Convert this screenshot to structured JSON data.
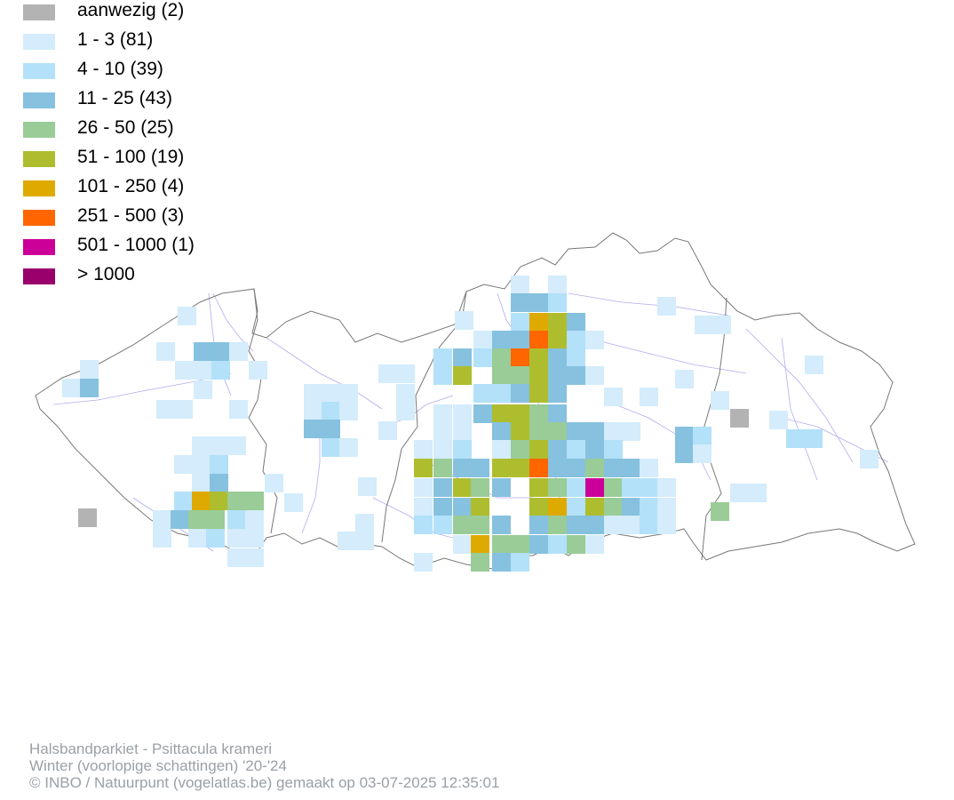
{
  "legend": {
    "items": [
      {
        "label": "aanwezig (2)",
        "color": "#b3b3b3"
      },
      {
        "label": "1 - 3 (81)",
        "color": "#d4ecfb"
      },
      {
        "label": "4 - 10 (39)",
        "color": "#b3e1f9"
      },
      {
        "label": "11 - 25 (43)",
        "color": "#86c1df"
      },
      {
        "label": "26 - 50 (25)",
        "color": "#99cc96"
      },
      {
        "label": "51 - 100 (19)",
        "color": "#aebd2e"
      },
      {
        "label": "101 - 250 (4)",
        "color": "#dfaa00"
      },
      {
        "label": "251 - 500 (3)",
        "color": "#ff6600"
      },
      {
        "label": "501 - 1000 (1)",
        "color": "#cc0099"
      },
      {
        "label": "> 1000",
        "color": "#99006b"
      }
    ]
  },
  "footer": {
    "species": "Halsbandparkiet - Psittacula krameri",
    "period": "Winter (voorlopige schattingen) '20-'24",
    "credit": "© INBO / Natuurpunt (vogelatlas.be) gemaakt op 03-07-2025 12:35:01"
  }
}
